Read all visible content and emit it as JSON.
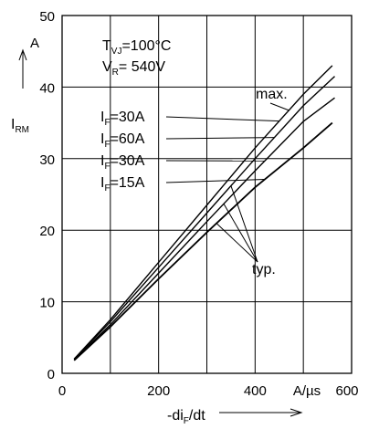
{
  "chart_data": {
    "type": "line",
    "title": "",
    "x_axis": {
      "label_main": "-di",
      "label_sub": "F",
      "label_tail": "/dt",
      "unit": "A/µs",
      "range": [
        0,
        600
      ],
      "ticks": [
        0,
        200,
        400,
        600
      ],
      "tick_labels": [
        "0",
        "200",
        "400",
        "600"
      ]
    },
    "y_axis": {
      "label_main": "I",
      "label_sub": "RM",
      "unit": "A",
      "range": [
        0,
        50
      ],
      "ticks": [
        0,
        10,
        20,
        30,
        40,
        50
      ],
      "tick_labels": [
        "0",
        "10",
        "20",
        "30",
        "40",
        "50"
      ]
    },
    "grid": true,
    "conditions": {
      "tvj_main": "T",
      "tvj_sub": "VJ",
      "tvj_value": "=100°C",
      "vr_main": "V",
      "vr_sub": "R",
      "vr_value": "= 540V"
    },
    "series": [
      {
        "name": "max. I_F=30A",
        "label_main": "I",
        "label_sub": "F",
        "label_value": "=30A",
        "x": [
          25,
          100,
          200,
          300,
          400,
          500,
          560
        ],
        "y": [
          2.0,
          7.5,
          15.5,
          23.5,
          31.5,
          39.0,
          43.0
        ]
      },
      {
        "name": "typ. I_F=60A",
        "label_main": "I",
        "label_sub": "F",
        "label_value": "=60A",
        "x": [
          25,
          100,
          200,
          300,
          400,
          500,
          565
        ],
        "y": [
          2.0,
          7.2,
          14.8,
          22.4,
          30.0,
          37.4,
          41.5
        ]
      },
      {
        "name": "typ. I_F=30A",
        "label_main": "I",
        "label_sub": "F",
        "label_value": "=30A",
        "x": [
          25,
          100,
          200,
          300,
          400,
          500,
          565
        ],
        "y": [
          1.9,
          6.8,
          14.0,
          21.2,
          28.3,
          35.2,
          38.5
        ]
      },
      {
        "name": "typ. I_F=15A",
        "label_main": "I",
        "label_sub": "F",
        "label_value": "=15A",
        "x": [
          25,
          100,
          200,
          300,
          400,
          500,
          560
        ],
        "y": [
          1.8,
          6.5,
          13.2,
          19.7,
          26.0,
          31.5,
          35.0
        ]
      }
    ],
    "annotations": {
      "max_label": "max.",
      "typ_label": "typ."
    }
  }
}
